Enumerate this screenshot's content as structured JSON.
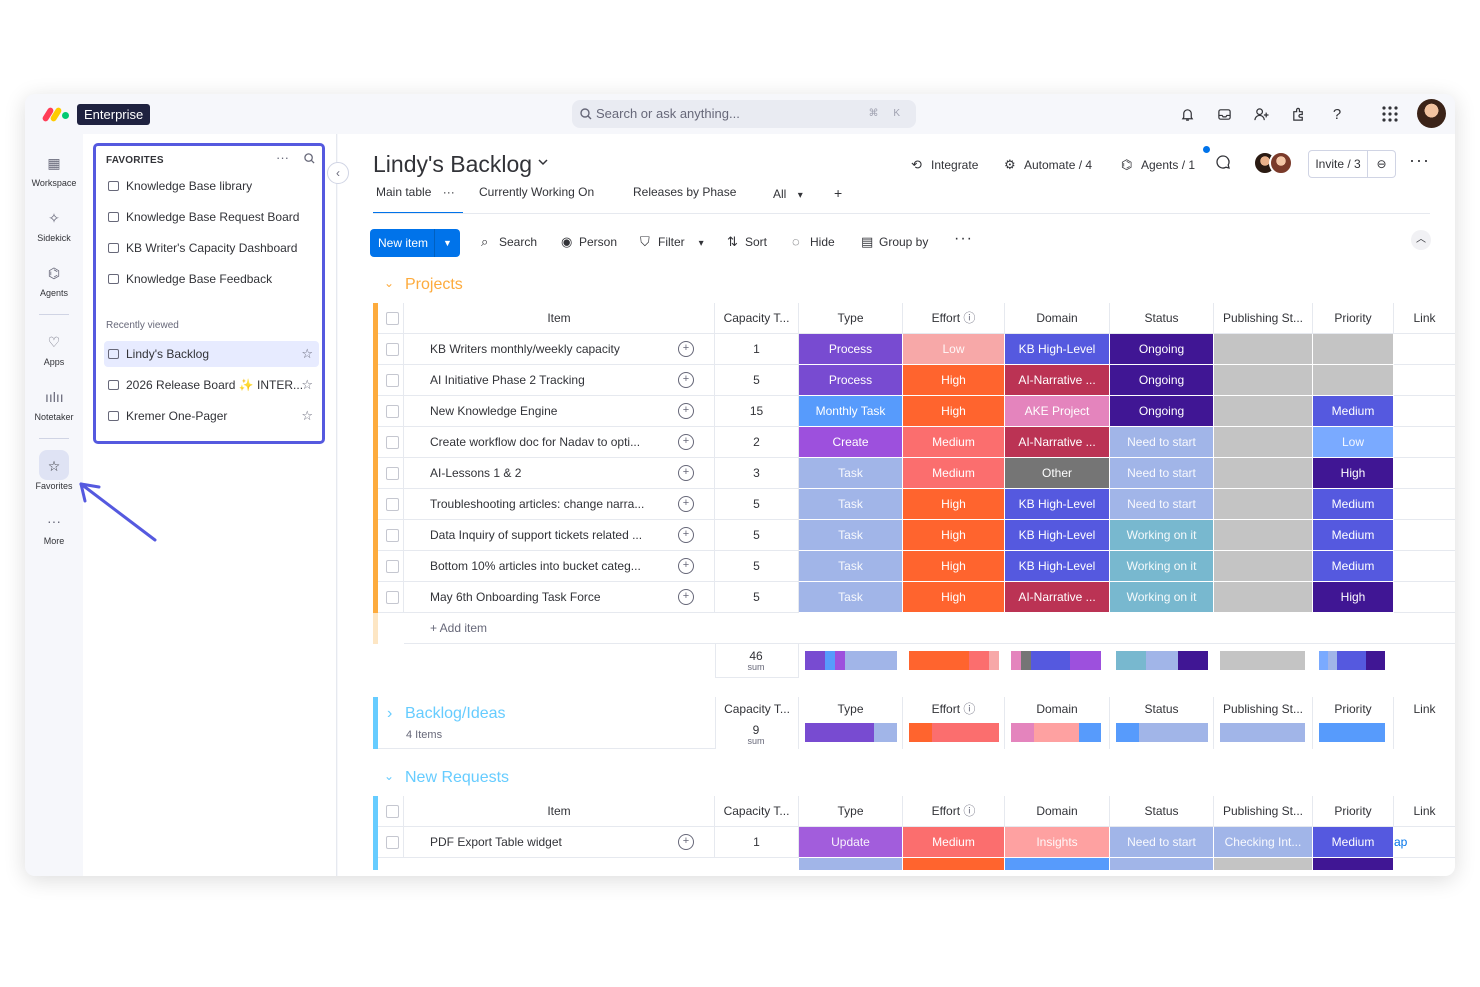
{
  "app": {
    "badge": "Enterprise"
  },
  "search": {
    "placeholder": "Search or ask anything...",
    "shortcut": "⌘ K"
  },
  "top_icons": [
    "bell-icon",
    "inbox-icon",
    "invite-members-icon",
    "integrations-icon",
    "help-icon",
    "apps-grid-icon"
  ],
  "rail": {
    "workspace": "Workspace",
    "sidekick": "Sidekick",
    "agents": "Agents",
    "apps": "Apps",
    "notetaker": "Notetaker",
    "favorites": "Favorites",
    "more": "More"
  },
  "favorites": {
    "header": "FAVORITES",
    "items": [
      "Knowledge Base library",
      "Knowledge Base Request Board",
      "KB Writer's Capacity Dashboard",
      "Knowledge Base Feedback"
    ],
    "recent_label": "Recently viewed",
    "recent": [
      "Lindy's Backlog",
      "2026 Release Board ✨ INTER...",
      "Kremer One-Pager"
    ]
  },
  "board": {
    "title": "Lindy's Backlog",
    "integrate": "Integrate",
    "automate": "Automate / 4",
    "agents": "Agents / 1",
    "invite": "Invite / 3",
    "tabs": [
      "Main table",
      "Currently Working On",
      "Releases by Phase",
      "All"
    ],
    "tab_more": "···",
    "tab_add": "+"
  },
  "toolbar": {
    "new_item": "New item",
    "search": "Search",
    "person": "Person",
    "filter": "Filter",
    "sort": "Sort",
    "hide": "Hide",
    "group_by": "Group by"
  },
  "columns": [
    "Item",
    "Capacity T...",
    "Type",
    "Effort",
    "Domain",
    "Status",
    "Publishing St...",
    "Priority",
    "Link"
  ],
  "colors": {
    "process": "#784bd1",
    "monthly": "#579bfc",
    "create": "#9d50dd",
    "update": "#a25ddc",
    "task": "#a1b5e8",
    "low_pale": "#f7a8a8",
    "high": "#ff642e",
    "medium": "#fb6e6e",
    "kb_high": "#5559df",
    "ai_narr": "#bb3354",
    "ake": "#e484bd",
    "other": "#757575",
    "insights": "#fea1a1",
    "ongoing": "#401694",
    "need_start": "#a1b5e8",
    "working": "#78b8cf",
    "empty": "#c4c4c4",
    "p_medium": "#5559df",
    "p_low": "#7aaaff",
    "p_high": "#401694",
    "projects": "#fdab3d",
    "backlog": "#66ccff"
  },
  "groups": {
    "projects": {
      "title": "Projects",
      "add_item": "+ Add item",
      "sum": "46",
      "sum_label": "sum",
      "rows": [
        {
          "item": "KB Writers monthly/weekly capacity",
          "cap": "1",
          "type": "Process",
          "effort": "Low",
          "domain": "KB High-Level",
          "status": "Ongoing",
          "pub": "",
          "priority": ""
        },
        {
          "item": "AI Initiative Phase 2 Tracking",
          "cap": "5",
          "type": "Process",
          "effort": "High",
          "domain": "AI-Narrative ...",
          "status": "Ongoing",
          "pub": "",
          "priority": ""
        },
        {
          "item": "New Knowledge Engine",
          "cap": "15",
          "type": "Monthly Task",
          "effort": "High",
          "domain": "AKE Project",
          "status": "Ongoing",
          "pub": "",
          "priority": "Medium"
        },
        {
          "item": "Create workflow doc for Nadav to opti...",
          "cap": "2",
          "type": "Create",
          "effort": "Medium",
          "domain": "AI-Narrative ...",
          "status": "Need to start",
          "pub": "",
          "priority": "Low"
        },
        {
          "item": "AI-Lessons 1 & 2",
          "cap": "3",
          "type": "Task",
          "effort": "Medium",
          "domain": "Other",
          "status": "Need to start",
          "pub": "",
          "priority": "High"
        },
        {
          "item": "Troubleshooting articles: change narra...",
          "cap": "5",
          "type": "Task",
          "effort": "High",
          "domain": "KB High-Level",
          "status": "Need to start",
          "pub": "",
          "priority": "Medium"
        },
        {
          "item": "Data Inquiry of support tickets related ...",
          "cap": "5",
          "type": "Task",
          "effort": "High",
          "domain": "KB High-Level",
          "status": "Working on it",
          "pub": "",
          "priority": "Medium"
        },
        {
          "item": "Bottom 10% articles into bucket categ...",
          "cap": "5",
          "type": "Task",
          "effort": "High",
          "domain": "KB High-Level",
          "status": "Working on it",
          "pub": "",
          "priority": "Medium"
        },
        {
          "item": "May 6th Onboarding Task Force",
          "cap": "5",
          "type": "Task",
          "effort": "High",
          "domain": "AI-Narrative ...",
          "status": "Working on it",
          "pub": "",
          "priority": "High"
        }
      ]
    },
    "backlog": {
      "title": "Backlog/Ideas",
      "count": "4 Items",
      "sum": "9",
      "sum_label": "sum"
    },
    "new_requests": {
      "title": "New Requests",
      "rows": [
        {
          "item": "PDF Export Table widget",
          "cap": "1",
          "type": "Update",
          "effort": "Medium",
          "domain": "Insights",
          "status": "Need to start",
          "pub": "Checking Int...",
          "priority": "Medium",
          "link": "ap"
        }
      ]
    }
  }
}
